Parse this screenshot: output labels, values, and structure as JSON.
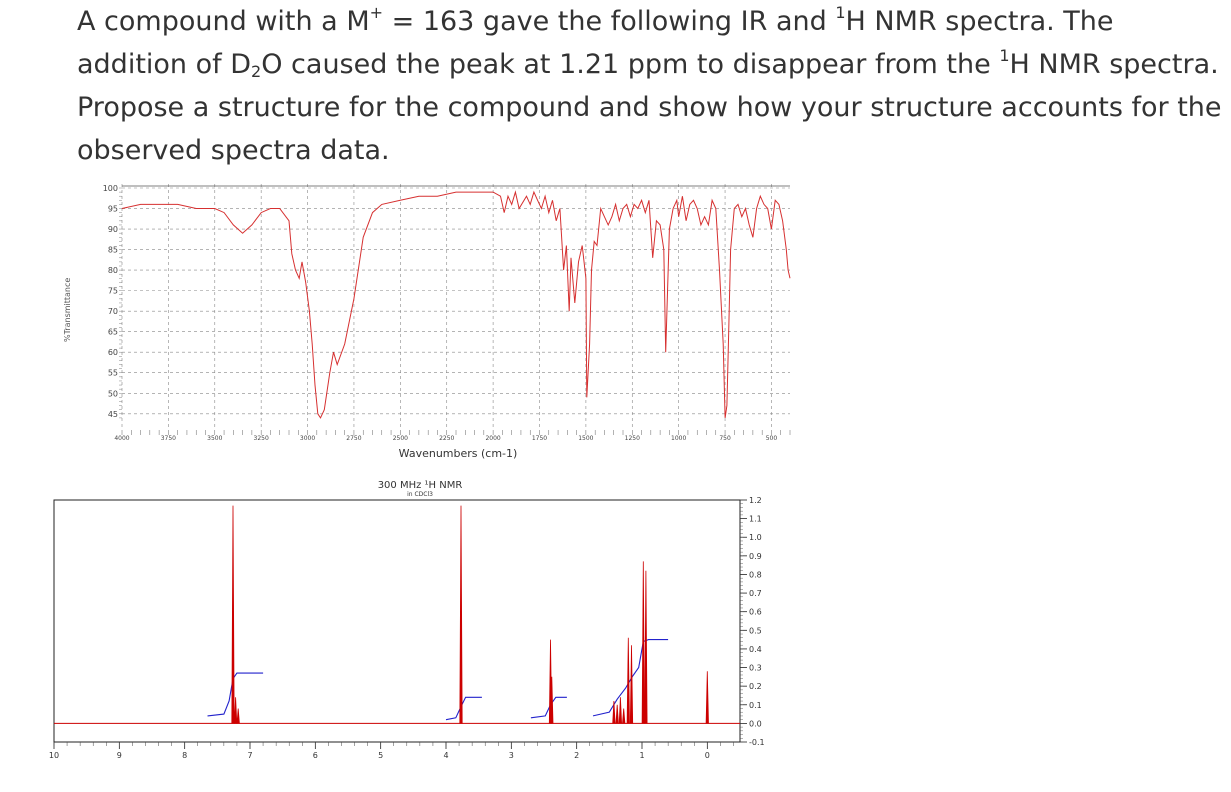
{
  "question": {
    "p1": "A compound with a M",
    "p1_sup_plus": "+",
    "p2": " = 163 gave the following IR and ",
    "p2_sup": "1",
    "p3": "H NMR spectra.  The addition of D",
    "p3_sub": "2",
    "p4": "O caused the peak at 1.21 ppm to disappear from the ",
    "p4_sup": "1",
    "p5": "H NMR spectra.  Propose a structure for the compound and show how your structure accounts for the observed spectra data."
  },
  "chart_data": [
    {
      "type": "line",
      "ylabel": "%Transmittance",
      "xlabel": "Wavenumbers (cm-1)",
      "x_reversed": true,
      "xlim": [
        4000,
        400
      ],
      "ylim": [
        43,
        100
      ],
      "x_ticks": [
        4000,
        3750,
        3500,
        3250,
        3000,
        2750,
        2500,
        2250,
        2000,
        1750,
        1500,
        1250,
        1000,
        750,
        500
      ],
      "y_ticks": [
        45,
        50,
        55,
        60,
        65,
        70,
        75,
        80,
        85,
        90,
        95,
        100
      ],
      "grid": true,
      "line_color": "#d63030",
      "series": [
        {
          "x": [
            4000,
            3900,
            3800,
            3700,
            3600,
            3500,
            3450,
            3400,
            3350,
            3300,
            3250,
            3200,
            3150,
            3100,
            3085,
            3065,
            3045,
            3030,
            3010,
            2990,
            2975,
            2960,
            2945,
            2930,
            2910,
            2880,
            2860,
            2840,
            2800,
            2750,
            2700,
            2650,
            2600,
            2500,
            2400,
            2300,
            2200,
            2100,
            2000,
            1960,
            1940,
            1920,
            1900,
            1880,
            1860,
            1820,
            1800,
            1780,
            1760,
            1740,
            1720,
            1700,
            1680,
            1660,
            1640,
            1620,
            1605,
            1590,
            1580,
            1560,
            1540,
            1520,
            1500,
            1495,
            1480,
            1470,
            1455,
            1440,
            1420,
            1400,
            1380,
            1360,
            1340,
            1320,
            1300,
            1280,
            1260,
            1240,
            1220,
            1200,
            1180,
            1160,
            1140,
            1120,
            1100,
            1080,
            1070,
            1050,
            1030,
            1010,
            1000,
            980,
            960,
            940,
            920,
            900,
            880,
            860,
            840,
            820,
            800,
            780,
            760,
            750,
            740,
            730,
            720,
            700,
            680,
            660,
            640,
            620,
            600,
            580,
            560,
            540,
            520,
            500,
            480,
            460,
            440,
            420,
            410,
            400
          ],
          "y": [
            95,
            96,
            96,
            96,
            95,
            95,
            94,
            91,
            89,
            91,
            94,
            95,
            95,
            92,
            84,
            80,
            78,
            82,
            77,
            70,
            62,
            52,
            45,
            44,
            46,
            55,
            60,
            57,
            62,
            73,
            88,
            94,
            96,
            97,
            98,
            98,
            99,
            99,
            99,
            98,
            94,
            98,
            96,
            99,
            95,
            98,
            96,
            99,
            97,
            95,
            98,
            94,
            97,
            92,
            95,
            80,
            86,
            70,
            83,
            72,
            82,
            86,
            78,
            49,
            62,
            80,
            87,
            86,
            95,
            93,
            91,
            93,
            96,
            92,
            95,
            96,
            93,
            96,
            95,
            97,
            94,
            97,
            83,
            92,
            91,
            85,
            60,
            90,
            95,
            97,
            93,
            98,
            92,
            96,
            97,
            95,
            91,
            93,
            91,
            97,
            95,
            80,
            62,
            44,
            47,
            66,
            85,
            95,
            96,
            93,
            95,
            91,
            88,
            95,
            98,
            96,
            95,
            90,
            97,
            96,
            92,
            85,
            80,
            78
          ]
        }
      ]
    },
    {
      "type": "line",
      "title": "300 MHz ¹H NMR",
      "subtitle": "in CDCl3",
      "x_reversed": true,
      "xlim": [
        10,
        -0.5
      ],
      "ylim": [
        -0.1,
        1.2
      ],
      "x_ticks": [
        10,
        9,
        8,
        7,
        6,
        5,
        4,
        3,
        2,
        1,
        0
      ],
      "y_ticks": [
        -0.1,
        0.0,
        0.1,
        0.2,
        0.3,
        0.4,
        0.5,
        0.6,
        0.7,
        0.8,
        0.9,
        1.0,
        1.1,
        1.2
      ],
      "y_axis_side": "right",
      "series": [
        {
          "name": "",
          "color": "#cc0000",
          "kind": "peaks",
          "peaks": [
            {
              "ppm": 7.26,
              "height": 1.17
            },
            {
              "ppm": 7.22,
              "height": 0.14
            },
            {
              "ppm": 7.18,
              "height": 0.08
            },
            {
              "ppm": 3.77,
              "height": 1.17
            },
            {
              "ppm": 2.4,
              "height": 0.45
            },
            {
              "ppm": 2.38,
              "height": 0.25
            },
            {
              "ppm": 1.43,
              "height": 0.12
            },
            {
              "ppm": 1.38,
              "height": 0.1
            },
            {
              "ppm": 1.33,
              "height": 0.14
            },
            {
              "ppm": 1.28,
              "height": 0.08
            },
            {
              "ppm": 1.21,
              "height": 0.46
            },
            {
              "ppm": 1.16,
              "height": 0.42
            },
            {
              "ppm": 0.98,
              "height": 0.87
            },
            {
              "ppm": 0.94,
              "height": 0.82
            },
            {
              "ppm": 0.0,
              "height": 0.28
            }
          ]
        },
        {
          "name": "",
          "color": "#2222cc",
          "kind": "integration",
          "segments": [
            {
              "x": [
                7.65,
                7.4,
                7.32,
                7.26,
                7.2,
                7.1,
                6.8
              ],
              "y": [
                0.04,
                0.05,
                0.12,
                0.24,
                0.27,
                0.27,
                0.27
              ]
            },
            {
              "x": [
                4.0,
                3.85,
                3.77,
                3.7,
                3.45
              ],
              "y": [
                0.02,
                0.03,
                0.09,
                0.14,
                0.14
              ]
            },
            {
              "x": [
                2.7,
                2.48,
                2.4,
                2.32,
                2.15
              ],
              "y": [
                0.03,
                0.04,
                0.1,
                0.14,
                0.14
              ]
            },
            {
              "x": [
                1.75,
                1.5,
                1.38,
                1.25,
                1.15,
                1.05,
                0.98,
                0.9,
                0.6
              ],
              "y": [
                0.04,
                0.06,
                0.13,
                0.19,
                0.25,
                0.3,
                0.44,
                0.45,
                0.45
              ]
            }
          ]
        }
      ]
    }
  ]
}
